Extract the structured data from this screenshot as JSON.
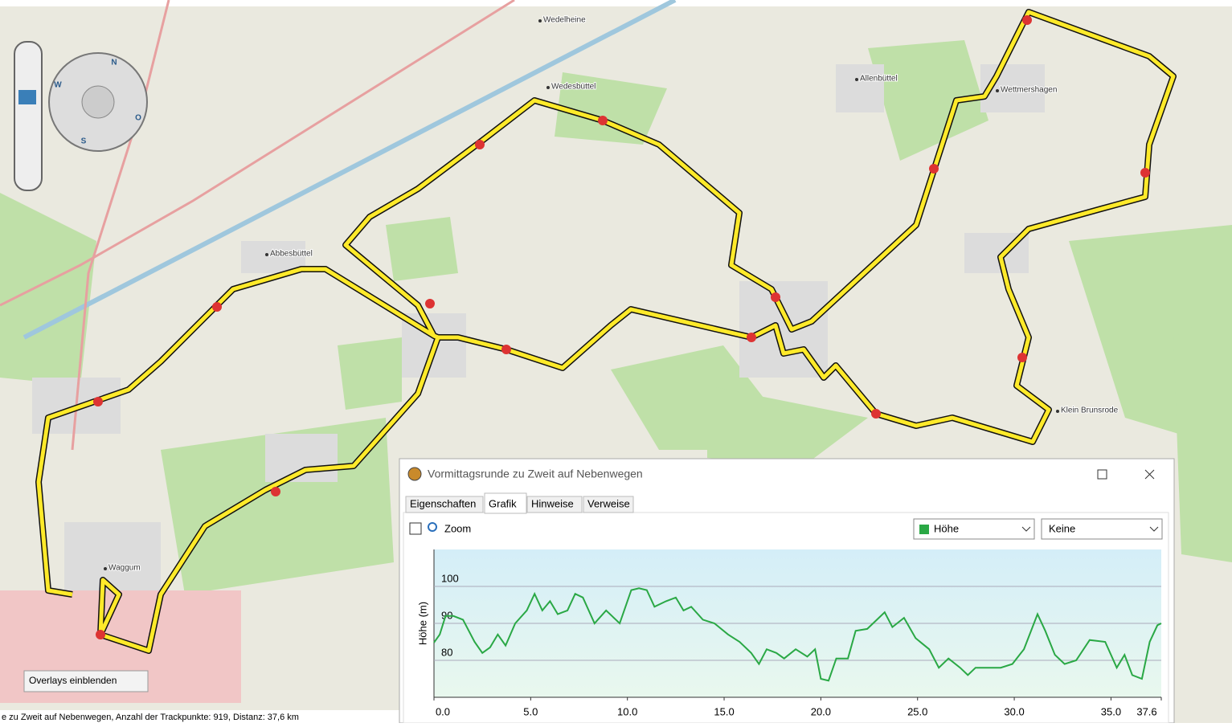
{
  "map": {
    "places": [
      "Wedelheine",
      "Wedesbüttel",
      "Allenbüttel",
      "Wettmershagen",
      "Abbesbüttel",
      "Klein Brunsrode",
      "Waggum"
    ],
    "compass": [
      "N",
      "O",
      "S",
      "W"
    ],
    "overlay_button": "Overlays einblenden"
  },
  "status_bar": "e zu Zweit auf Nebenwegen, Anzahl der Trackpunkte: 919, Distanz: 37,6 km",
  "dialog": {
    "title": "Vormittagsrunde zu Zweit auf Nebenwegen",
    "tabs": [
      "Eigenschaften",
      "Grafik",
      "Hinweise",
      "Verweise"
    ],
    "zoom_label": "Zoom",
    "dropdowns": [
      "Höhe",
      "Keine"
    ]
  },
  "chart_data": {
    "type": "line",
    "y_label": "Höhe (m)",
    "color": "#2aa845",
    "grid": true,
    "x": [
      0,
      0.3,
      0.6,
      1.0,
      1.5,
      2.1,
      2.5,
      2.9,
      3.3,
      3.7,
      4.2,
      4.8,
      5.2,
      5.6,
      6.0,
      6.4,
      6.9,
      7.3,
      7.7,
      8.3,
      8.9,
      9.6,
      10.2,
      10.6,
      11.0,
      11.4,
      12.0,
      12.5,
      12.9,
      13.3,
      13.9,
      14.5,
      15.2,
      15.8,
      16.4,
      16.8,
      17.2,
      17.7,
      18.1,
      18.7,
      19.3,
      19.7,
      20.0,
      20.4,
      20.8,
      21.4,
      21.8,
      22.4,
      22.9,
      23.3,
      23.7,
      24.3,
      24.9,
      25.6,
      26.1,
      26.6,
      27.2,
      27.6,
      28.0,
      28.7,
      29.3,
      29.9,
      30.5,
      31.2,
      31.6,
      32.1,
      32.6,
      33.2,
      33.9,
      34.7,
      35.3,
      35.7,
      36.1,
      36.6,
      37.0,
      37.4,
      37.6
    ],
    "values": [
      84.8,
      87,
      92,
      92,
      91,
      85,
      82,
      83.5,
      87,
      84,
      90,
      93.5,
      98,
      93.5,
      96,
      92.5,
      93.5,
      98,
      97,
      90,
      93.5,
      90,
      99,
      99.5,
      99,
      94.5,
      96,
      97,
      93.5,
      94.5,
      91,
      90,
      87,
      85,
      82,
      79,
      83,
      82,
      80.5,
      83,
      81,
      83,
      75,
      74.5,
      80.5,
      80.5,
      88,
      88.5,
      91,
      93,
      89,
      91.5,
      86,
      83,
      78,
      80.5,
      78,
      76,
      78,
      78,
      78,
      79,
      83,
      92.5,
      88,
      81.5,
      79,
      80,
      85.5,
      85,
      78,
      81.5,
      76,
      75,
      85,
      89.5,
      90
    ],
    "xlim": [
      0,
      37.6
    ],
    "xticks": [
      {
        "value": 0,
        "label": "0.0"
      },
      {
        "value": 5,
        "label": "5.0"
      },
      {
        "value": 10,
        "label": "10.0"
      },
      {
        "value": 15,
        "label": "15.0"
      },
      {
        "value": 20,
        "label": "20.0"
      },
      {
        "value": 25,
        "label": "25.0"
      },
      {
        "value": 30,
        "label": "30.0"
      },
      {
        "value": 35,
        "label": "35.0"
      },
      37.6
    ],
    "ylim": [
      70,
      110
    ],
    "yticks": [
      80,
      90,
      100
    ]
  }
}
